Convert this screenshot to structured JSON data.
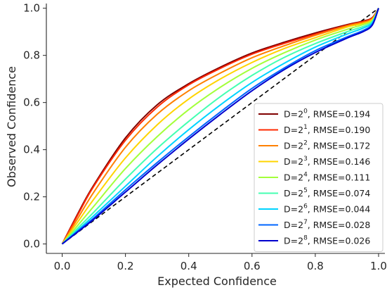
{
  "chart_data": {
    "type": "line",
    "title": "",
    "xlabel": "Expected Confidence",
    "ylabel": "Observed Confidence",
    "xlim": [
      -0.05,
      1.02
    ],
    "ylim": [
      -0.04,
      1.02
    ],
    "xticks": [
      0.0,
      0.2,
      0.4,
      0.6,
      0.8,
      1.0
    ],
    "yticks": [
      0.0,
      0.2,
      0.4,
      0.6,
      0.8,
      1.0
    ],
    "tick_labels_x": [
      "0.0",
      "0.2",
      "0.4",
      "0.6",
      "0.8",
      "1.0"
    ],
    "tick_labels_y": [
      "0.0",
      "0.2",
      "0.4",
      "0.6",
      "0.8",
      "1.0"
    ],
    "grid": false,
    "legend_position": "lower right",
    "reference_line": {
      "style": "dashed",
      "color": "#000000",
      "from": [
        0,
        0
      ],
      "to": [
        1,
        1
      ]
    },
    "x": [
      0.0,
      0.05,
      0.1,
      0.2,
      0.3,
      0.4,
      0.5,
      0.6,
      0.7,
      0.8,
      0.9,
      0.95,
      0.98,
      1.0
    ],
    "series": [
      {
        "name_base": "D=2",
        "exponent": "0",
        "name_suffix": ", RMSE=0.194",
        "color": "#800000",
        "values": [
          0.0,
          0.13,
          0.25,
          0.45,
          0.59,
          0.68,
          0.75,
          0.81,
          0.855,
          0.895,
          0.93,
          0.945,
          0.96,
          1.0
        ]
      },
      {
        "name_base": "D=2",
        "exponent": "1",
        "name_suffix": ", RMSE=0.190",
        "color": "#ff2a00",
        "values": [
          0.0,
          0.125,
          0.245,
          0.44,
          0.58,
          0.675,
          0.745,
          0.805,
          0.85,
          0.89,
          0.927,
          0.943,
          0.958,
          1.0
        ]
      },
      {
        "name_base": "D=2",
        "exponent": "2",
        "name_suffix": ", RMSE=0.172",
        "color": "#ff8000",
        "values": [
          0.0,
          0.11,
          0.22,
          0.41,
          0.55,
          0.65,
          0.725,
          0.79,
          0.84,
          0.885,
          0.925,
          0.94,
          0.955,
          1.0
        ]
      },
      {
        "name_base": "D=2",
        "exponent": "3",
        "name_suffix": ", RMSE=0.146",
        "color": "#ffd400",
        "values": [
          0.0,
          0.095,
          0.19,
          0.365,
          0.505,
          0.615,
          0.7,
          0.77,
          0.828,
          0.875,
          0.92,
          0.935,
          0.952,
          1.0
        ]
      },
      {
        "name_base": "D=2",
        "exponent": "4",
        "name_suffix": ", RMSE=0.111",
        "color": "#a3ff3a",
        "values": [
          0.0,
          0.08,
          0.16,
          0.32,
          0.455,
          0.57,
          0.665,
          0.745,
          0.81,
          0.865,
          0.91,
          0.93,
          0.948,
          1.0
        ]
      },
      {
        "name_base": "D=2",
        "exponent": "5",
        "name_suffix": ", RMSE=0.074",
        "color": "#44ffb2",
        "values": [
          0.0,
          0.068,
          0.135,
          0.275,
          0.405,
          0.52,
          0.625,
          0.715,
          0.79,
          0.85,
          0.9,
          0.922,
          0.943,
          1.0
        ]
      },
      {
        "name_base": "D=2",
        "exponent": "6",
        "name_suffix": ", RMSE=0.044",
        "color": "#00d4ff",
        "values": [
          0.0,
          0.06,
          0.12,
          0.245,
          0.37,
          0.485,
          0.59,
          0.685,
          0.765,
          0.835,
          0.89,
          0.915,
          0.938,
          1.0
        ]
      },
      {
        "name_base": "D=2",
        "exponent": "7",
        "name_suffix": ", RMSE=0.028",
        "color": "#0066ff",
        "values": [
          0.0,
          0.055,
          0.11,
          0.23,
          0.345,
          0.455,
          0.56,
          0.66,
          0.745,
          0.82,
          0.878,
          0.905,
          0.932,
          1.0
        ]
      },
      {
        "name_base": "D=2",
        "exponent": "8",
        "name_suffix": ", RMSE=0.026",
        "color": "#0000cd",
        "values": [
          0.0,
          0.052,
          0.105,
          0.22,
          0.335,
          0.445,
          0.55,
          0.65,
          0.738,
          0.812,
          0.873,
          0.9,
          0.928,
          1.0
        ]
      }
    ]
  }
}
